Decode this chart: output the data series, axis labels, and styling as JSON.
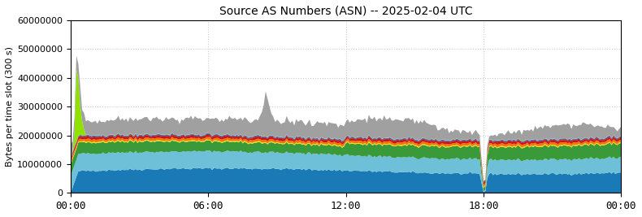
{
  "title": "Source AS Numbers (ASN) -- 2025-02-04 UTC",
  "ylabel": "Bytes per time slot (300 s)",
  "xlabel": "",
  "xlim": [
    0,
    288
  ],
  "ylim": [
    0,
    60000000
  ],
  "yticks": [
    0,
    10000000,
    20000000,
    30000000,
    40000000,
    50000000,
    60000000
  ],
  "xtick_positions": [
    0,
    72,
    144,
    216,
    288
  ],
  "xtick_labels": [
    "00:00",
    "06:00",
    "12:00",
    "18:00",
    "00:00"
  ],
  "layer_colors": [
    "#1a7ab5",
    "#6ec0d9",
    "#3a9a3a",
    "#f0e000",
    "#f07800",
    "#d01010",
    "#900000",
    "#1a1a8c",
    "#3050d0",
    "#90e000",
    "#a0a0a0"
  ],
  "background_color": "#ffffff",
  "grid_color": "#cccccc",
  "n_points": 289
}
